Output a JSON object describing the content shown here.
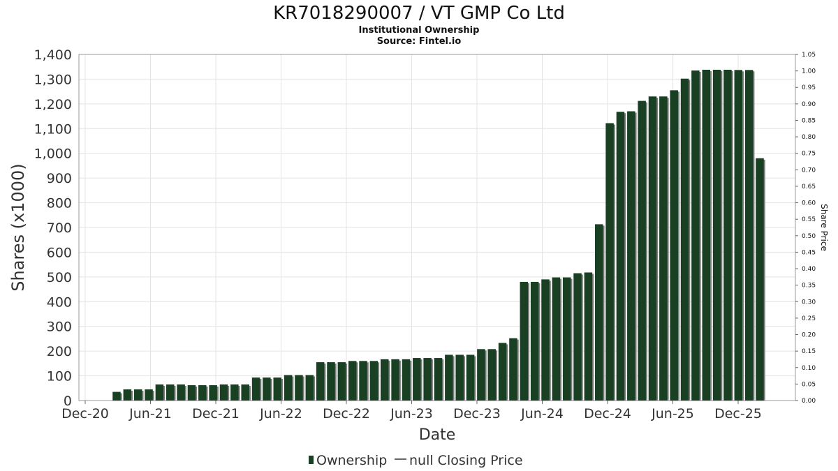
{
  "chart_data": {
    "type": "bar",
    "title": "KR7018290007 / VT GMP Co Ltd",
    "subtitle": "Institutional Ownership",
    "source": "Source: Fintel.io",
    "xlabel": "Date",
    "ylabel": "Shares (x1000)",
    "y2label": "Share Price",
    "ylim": [
      0,
      1400
    ],
    "y2lim": [
      0,
      1.05
    ],
    "yticks": [
      "0",
      "100",
      "200",
      "300",
      "400",
      "500",
      "600",
      "700",
      "800",
      "900",
      "1,000",
      "1,100",
      "1,200",
      "1,300",
      "1,400"
    ],
    "y2ticks": [
      "0.00",
      "0.05",
      "0.10",
      "0.15",
      "0.20",
      "0.25",
      "0.30",
      "0.35",
      "0.40",
      "0.45",
      "0.50",
      "0.55",
      "0.60",
      "0.65",
      "0.70",
      "0.75",
      "0.80",
      "0.85",
      "0.90",
      "0.95",
      "1.00",
      "1.05"
    ],
    "xticks": [
      "Dec-20",
      "Jun-21",
      "Dec-21",
      "Jun-22",
      "Dec-22",
      "Jun-23",
      "Dec-23",
      "Jun-24",
      "Dec-24",
      "Jun-25",
      "Dec-25"
    ],
    "grid": true,
    "legend_position": "bottom",
    "series": [
      {
        "name": "Ownership",
        "color": "#1a4024",
        "values": [
          35,
          45,
          45,
          45,
          65,
          65,
          65,
          62,
          62,
          62,
          65,
          65,
          65,
          93,
          93,
          93,
          103,
          103,
          103,
          155,
          155,
          155,
          160,
          160,
          160,
          167,
          167,
          167,
          172,
          172,
          172,
          185,
          185,
          185,
          208,
          208,
          233,
          252,
          480,
          480,
          490,
          498,
          498,
          515,
          518,
          713,
          1122,
          1168,
          1170,
          1212,
          1230,
          1230,
          1255,
          1302,
          1335,
          1338,
          1338,
          1338,
          1337,
          1337,
          980
        ]
      },
      {
        "name": "null Closing Price",
        "color": "#333333",
        "values": []
      }
    ]
  }
}
